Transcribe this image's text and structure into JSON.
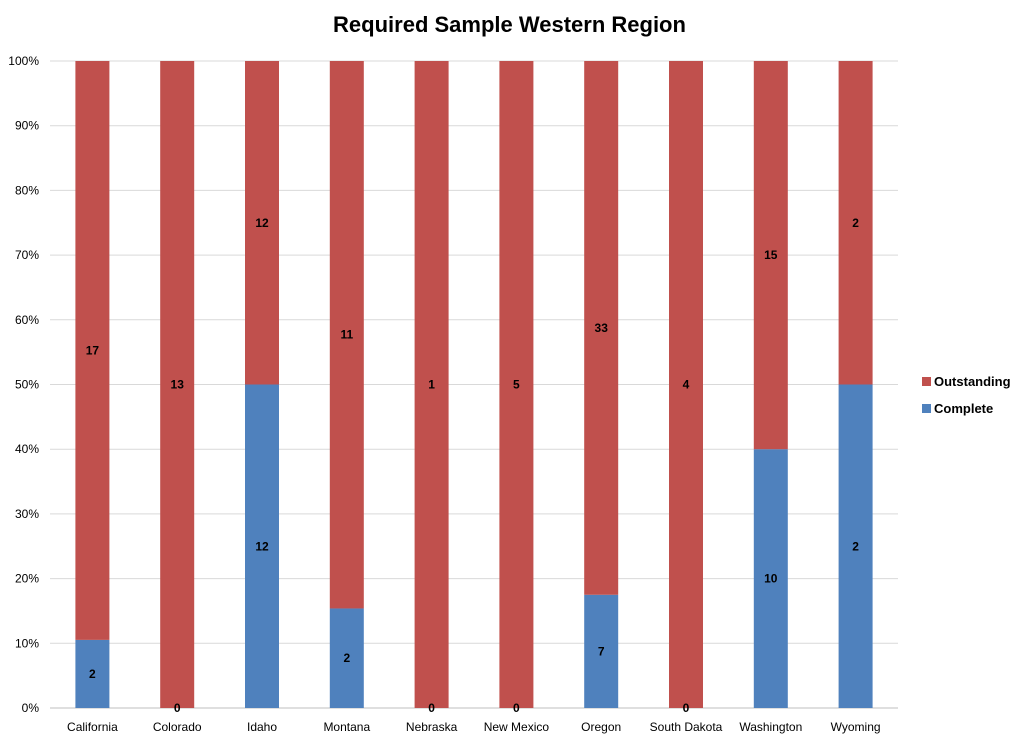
{
  "chart_data": {
    "type": "bar",
    "stacked": "percent",
    "title": "Required Sample Western Region",
    "xlabel": "",
    "ylabel": "",
    "ylim": [
      0,
      100
    ],
    "y_tick_labels": [
      "0%",
      "10%",
      "20%",
      "30%",
      "40%",
      "50%",
      "60%",
      "70%",
      "80%",
      "90%",
      "100%"
    ],
    "grid": "horizontal",
    "legend_position": "right",
    "categories": [
      "California",
      "Colorado",
      "Idaho",
      "Montana",
      "Nebraska",
      "New Mexico",
      "Oregon",
      "South Dakota",
      "Washington",
      "Wyoming"
    ],
    "series": [
      {
        "name": "Complete",
        "color": "#4f81bd",
        "values": [
          2,
          0,
          12,
          2,
          0,
          0,
          7,
          0,
          10,
          2
        ]
      },
      {
        "name": "Outstanding",
        "color": "#c0504d",
        "values": [
          17,
          13,
          12,
          11,
          1,
          5,
          33,
          4,
          15,
          2
        ]
      }
    ],
    "legend_order": [
      "Outstanding",
      "Complete"
    ]
  }
}
